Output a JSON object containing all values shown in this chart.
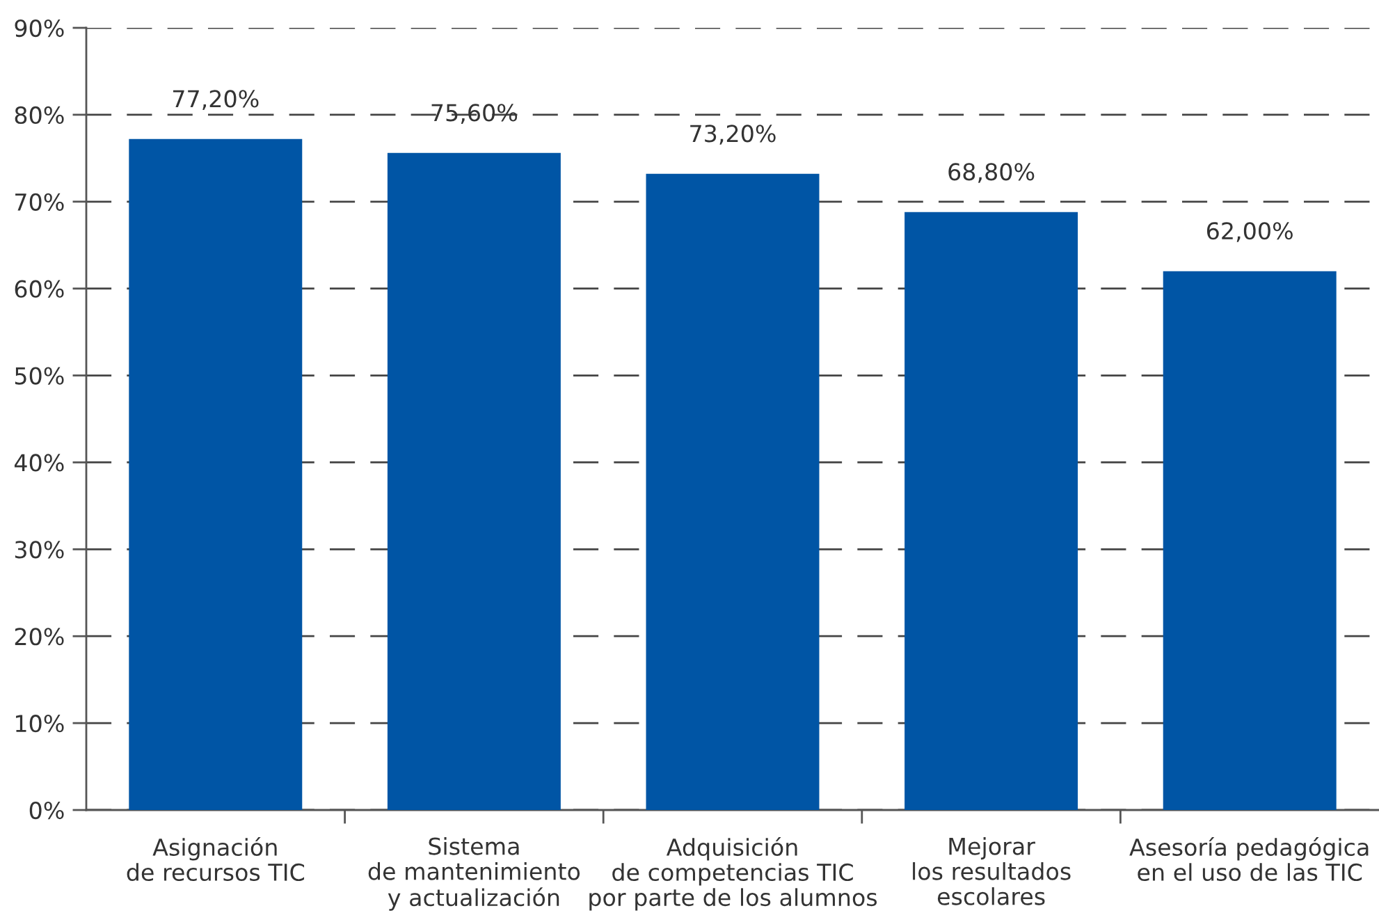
{
  "chart_data": {
    "type": "bar",
    "categories": [
      "Asignación\nde recursos TIC",
      "Sistema\nde mantenimiento\ny actualización",
      "Adquisición\nde competencias TIC\npor parte de los alumnos",
      "Mejorar\nlos resultados\nescolares",
      "Asesoría pedagógica\nen el uso de las TIC"
    ],
    "values": [
      77.2,
      75.6,
      73.2,
      68.8,
      62.0
    ],
    "value_labels": [
      "77,20%",
      "75,60%",
      "73,20%",
      "68,80%",
      "62,00%"
    ],
    "color": "#0055a5",
    "ylim": [
      0,
      90
    ],
    "yticks": [
      {
        "value": 0,
        "label": "0%"
      },
      {
        "value": 10,
        "label": "10%"
      },
      {
        "value": 20,
        "label": "20%"
      },
      {
        "value": 30,
        "label": "30%"
      },
      {
        "value": 40,
        "label": "40%"
      },
      {
        "value": 50,
        "label": "50%"
      },
      {
        "value": 60,
        "label": "60%"
      },
      {
        "value": 70,
        "label": "70%"
      },
      {
        "value": 80,
        "label": "80%"
      },
      {
        "value": 90,
        "label": "90%"
      }
    ],
    "grid": "y"
  }
}
